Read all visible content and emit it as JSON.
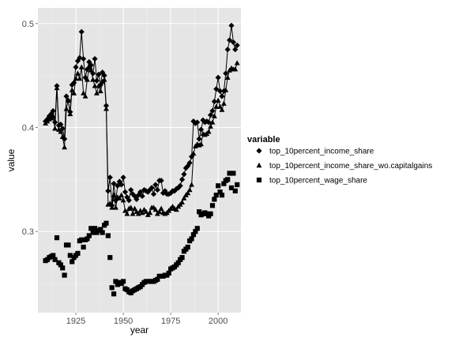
{
  "chart_data": {
    "type": "line",
    "xlabel": "year",
    "ylabel": "value",
    "xlim": [
      1905,
      2012
    ],
    "ylim": [
      0.222,
      0.515
    ],
    "x_ticks": [
      1925,
      1950,
      1975,
      2000
    ],
    "y_ticks": [
      0.3,
      0.4,
      0.5
    ],
    "x_tick_labels": [
      "1925",
      "1950",
      "1975",
      "2000"
    ],
    "y_tick_labels": [
      "0.3",
      "0.4",
      "0.5"
    ],
    "grid": true,
    "legend": {
      "title": "variable",
      "position": "right"
    },
    "series": [
      {
        "name": "top_10percent_income_share",
        "marker": "diamond",
        "connected": true,
        "x": [
          1909,
          1910,
          1911,
          1912,
          1913,
          1914,
          1915,
          1916,
          1917,
          1918,
          1919,
          1920,
          1921,
          1922,
          1923,
          1924,
          1925,
          1926,
          1927,
          1928,
          1929,
          1930,
          1931,
          1932,
          1933,
          1934,
          1935,
          1936,
          1937,
          1938,
          1939,
          1940,
          1941,
          1942,
          1943,
          1944,
          1945,
          1946,
          1947,
          1948,
          1949,
          1950,
          1951,
          1952,
          1953,
          1954,
          1955,
          1956,
          1957,
          1958,
          1959,
          1960,
          1961,
          1962,
          1963,
          1964,
          1965,
          1966,
          1967,
          1968,
          1969,
          1970,
          1971,
          1972,
          1973,
          1974,
          1975,
          1976,
          1977,
          1978,
          1979,
          1980,
          1981,
          1982,
          1983,
          1984,
          1985,
          1986,
          1987,
          1988,
          1989,
          1990,
          1991,
          1992,
          1993,
          1994,
          1995,
          1996,
          1997,
          1998,
          1999,
          2000,
          2001,
          2002,
          2003,
          2004,
          2005,
          2006,
          2007,
          2008,
          2009,
          2010
        ],
        "values": [
          0.406,
          0.408,
          0.411,
          0.413,
          0.416,
          0.405,
          0.44,
          0.402,
          0.403,
          0.399,
          0.389,
          0.43,
          0.426,
          0.415,
          0.441,
          0.443,
          0.458,
          0.464,
          0.467,
          0.492,
          0.466,
          0.448,
          0.456,
          0.463,
          0.46,
          0.452,
          0.466,
          0.445,
          0.451,
          0.441,
          0.453,
          0.45,
          0.421,
          0.339,
          0.352,
          0.325,
          0.346,
          0.33,
          0.344,
          0.348,
          0.345,
          0.352,
          0.338,
          0.333,
          0.33,
          0.34,
          0.336,
          0.334,
          0.331,
          0.335,
          0.338,
          0.334,
          0.34,
          0.339,
          0.338,
          0.34,
          0.342,
          0.336,
          0.345,
          0.34,
          0.349,
          0.349,
          0.337,
          0.339,
          0.336,
          0.336,
          0.337,
          0.339,
          0.339,
          0.341,
          0.342,
          0.344,
          0.35,
          0.355,
          0.361,
          0.363,
          0.366,
          0.372,
          0.406,
          0.404,
          0.405,
          0.389,
          0.398,
          0.407,
          0.405,
          0.406,
          0.405,
          0.412,
          0.416,
          0.425,
          0.437,
          0.448,
          0.435,
          0.43,
          0.435,
          0.452,
          0.475,
          0.484,
          0.498,
          0.482,
          0.475,
          0.479
        ]
      },
      {
        "name": "top_10percent_income_share_wo.capitalgains",
        "marker": "triangle",
        "connected": true,
        "x": [
          1909,
          1910,
          1911,
          1912,
          1913,
          1914,
          1915,
          1916,
          1917,
          1918,
          1919,
          1920,
          1921,
          1922,
          1923,
          1924,
          1925,
          1926,
          1927,
          1928,
          1929,
          1930,
          1931,
          1932,
          1933,
          1934,
          1935,
          1936,
          1937,
          1938,
          1939,
          1940,
          1941,
          1942,
          1943,
          1944,
          1945,
          1946,
          1947,
          1948,
          1949,
          1950,
          1951,
          1952,
          1953,
          1954,
          1955,
          1956,
          1957,
          1958,
          1959,
          1960,
          1961,
          1962,
          1963,
          1964,
          1965,
          1966,
          1967,
          1968,
          1969,
          1970,
          1971,
          1972,
          1973,
          1974,
          1975,
          1976,
          1977,
          1978,
          1979,
          1980,
          1981,
          1982,
          1983,
          1984,
          1985,
          1986,
          1987,
          1988,
          1989,
          1990,
          1991,
          1992,
          1993,
          1994,
          1995,
          1996,
          1997,
          1998,
          1999,
          2000,
          2001,
          2002,
          2003,
          2004,
          2005,
          2006,
          2007,
          2008,
          2009,
          2010
        ],
        "values": [
          0.404,
          0.406,
          0.408,
          0.409,
          0.411,
          0.399,
          0.438,
          0.398,
          0.396,
          0.391,
          0.381,
          0.418,
          0.426,
          0.413,
          0.436,
          0.433,
          0.447,
          0.452,
          0.447,
          0.458,
          0.433,
          0.43,
          0.446,
          0.458,
          0.455,
          0.446,
          0.44,
          0.433,
          0.44,
          0.435,
          0.444,
          0.446,
          0.418,
          0.326,
          0.327,
          0.323,
          0.335,
          0.323,
          0.333,
          0.332,
          0.335,
          0.33,
          0.32,
          0.317,
          0.322,
          0.323,
          0.317,
          0.322,
          0.319,
          0.317,
          0.32,
          0.318,
          0.321,
          0.319,
          0.316,
          0.318,
          0.323,
          0.323,
          0.321,
          0.317,
          0.319,
          0.322,
          0.318,
          0.317,
          0.318,
          0.32,
          0.322,
          0.324,
          0.322,
          0.321,
          0.324,
          0.326,
          0.328,
          0.332,
          0.335,
          0.337,
          0.34,
          0.345,
          0.375,
          0.382,
          0.384,
          0.383,
          0.384,
          0.394,
          0.393,
          0.394,
          0.396,
          0.401,
          0.405,
          0.411,
          0.42,
          0.426,
          0.42,
          0.417,
          0.423,
          0.436,
          0.448,
          0.455,
          0.457,
          0.456,
          0.456,
          0.462
        ]
      },
      {
        "name": "top_10percent_wage_share",
        "marker": "square",
        "connected": false,
        "x": [
          1909,
          1910,
          1911,
          1912,
          1913,
          1914,
          1915,
          1916,
          1917,
          1918,
          1919,
          1920,
          1921,
          1922,
          1923,
          1924,
          1925,
          1926,
          1927,
          1928,
          1929,
          1930,
          1931,
          1932,
          1933,
          1934,
          1935,
          1936,
          1937,
          1938,
          1939,
          1940,
          1941,
          1942,
          1943,
          1944,
          1945,
          1946,
          1947,
          1948,
          1949,
          1950,
          1951,
          1952,
          1953,
          1954,
          1955,
          1956,
          1957,
          1958,
          1959,
          1960,
          1961,
          1962,
          1963,
          1964,
          1965,
          1966,
          1967,
          1968,
          1969,
          1970,
          1971,
          1972,
          1973,
          1974,
          1975,
          1976,
          1977,
          1978,
          1979,
          1980,
          1981,
          1982,
          1983,
          1984,
          1985,
          1986,
          1987,
          1988,
          1989,
          1990,
          1991,
          1992,
          1993,
          1994,
          1995,
          1996,
          1997,
          1998,
          1999,
          2000,
          2001,
          2002,
          2003,
          2004,
          2005,
          2006,
          2007,
          2008,
          2009,
          2010
        ],
        "values": [
          0.272,
          0.273,
          0.275,
          0.276,
          0.277,
          0.273,
          0.294,
          0.27,
          0.268,
          0.265,
          0.258,
          0.287,
          0.287,
          0.277,
          0.271,
          0.275,
          0.277,
          0.279,
          0.291,
          0.292,
          0.285,
          0.292,
          0.293,
          0.296,
          0.303,
          0.299,
          0.303,
          0.299,
          0.301,
          0.302,
          0.299,
          0.306,
          0.308,
          0.296,
          0.275,
          0.246,
          0.24,
          0.252,
          0.249,
          0.251,
          0.25,
          0.252,
          0.245,
          0.244,
          0.242,
          0.241,
          0.243,
          0.244,
          0.245,
          0.246,
          0.247,
          0.249,
          0.251,
          0.252,
          0.252,
          0.252,
          0.252,
          0.252,
          0.253,
          0.254,
          0.257,
          0.257,
          0.257,
          0.258,
          0.258,
          0.26,
          0.264,
          0.265,
          0.266,
          0.268,
          0.27,
          0.273,
          0.275,
          0.281,
          0.283,
          0.285,
          0.291,
          0.293,
          0.297,
          0.3,
          0.303,
          0.319,
          0.316,
          0.317,
          0.318,
          0.317,
          0.315,
          0.317,
          0.325,
          0.331,
          0.335,
          0.344,
          0.338,
          0.335,
          0.346,
          0.349,
          0.35,
          0.356,
          0.342,
          0.356,
          0.339,
          0.345
        ]
      }
    ]
  }
}
